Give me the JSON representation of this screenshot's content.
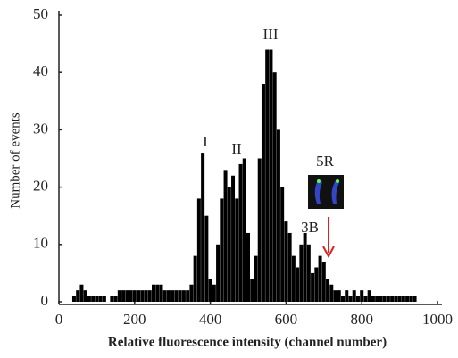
{
  "chart_data": {
    "type": "spike",
    "x_label": "Relative fluorescence intensity (channel number)",
    "y_label": "Number of events",
    "x": [
      40,
      50,
      60,
      70,
      80,
      90,
      100,
      110,
      120,
      130,
      140,
      150,
      160,
      170,
      180,
      190,
      200,
      210,
      220,
      230,
      240,
      250,
      260,
      270,
      280,
      290,
      300,
      310,
      320,
      330,
      340,
      350,
      360,
      370,
      380,
      390,
      400,
      410,
      420,
      430,
      440,
      450,
      460,
      470,
      480,
      490,
      500,
      510,
      520,
      530,
      540,
      550,
      560,
      570,
      580,
      590,
      600,
      610,
      620,
      630,
      640,
      650,
      660,
      670,
      680,
      690,
      700,
      710,
      720,
      730,
      740,
      750,
      760,
      770,
      780,
      790,
      800,
      810,
      820,
      830,
      840,
      850,
      860,
      870,
      880,
      890,
      900,
      910,
      920,
      930,
      940
    ],
    "values": [
      1,
      2,
      3,
      2,
      1,
      1,
      1,
      1,
      1,
      0,
      1,
      1,
      2,
      2,
      2,
      2,
      2,
      2,
      2,
      2,
      2,
      3,
      3,
      3,
      2,
      2,
      2,
      2,
      2,
      2,
      2,
      3,
      8,
      18,
      26,
      15,
      4,
      3,
      10,
      18,
      23,
      20,
      22,
      18,
      24,
      25,
      12,
      4,
      8,
      25,
      38,
      44,
      44,
      40,
      30,
      20,
      14,
      12,
      8,
      6,
      10,
      12,
      10,
      5,
      6,
      8,
      7,
      4,
      3,
      2,
      2,
      1,
      2,
      1,
      2,
      1,
      2,
      1,
      2,
      1,
      1,
      1,
      1,
      1,
      1,
      1,
      1,
      1,
      1,
      1,
      1
    ],
    "color": "#000000",
    "xlim": [
      0,
      1000
    ],
    "xticks": [
      0,
      200,
      400,
      600,
      800,
      1000
    ],
    "ylim": [
      0,
      50
    ],
    "yticks": [
      0,
      10,
      20,
      30,
      40,
      50
    ],
    "annotations": [
      "I",
      "II",
      "III",
      "3B",
      "5R"
    ]
  }
}
